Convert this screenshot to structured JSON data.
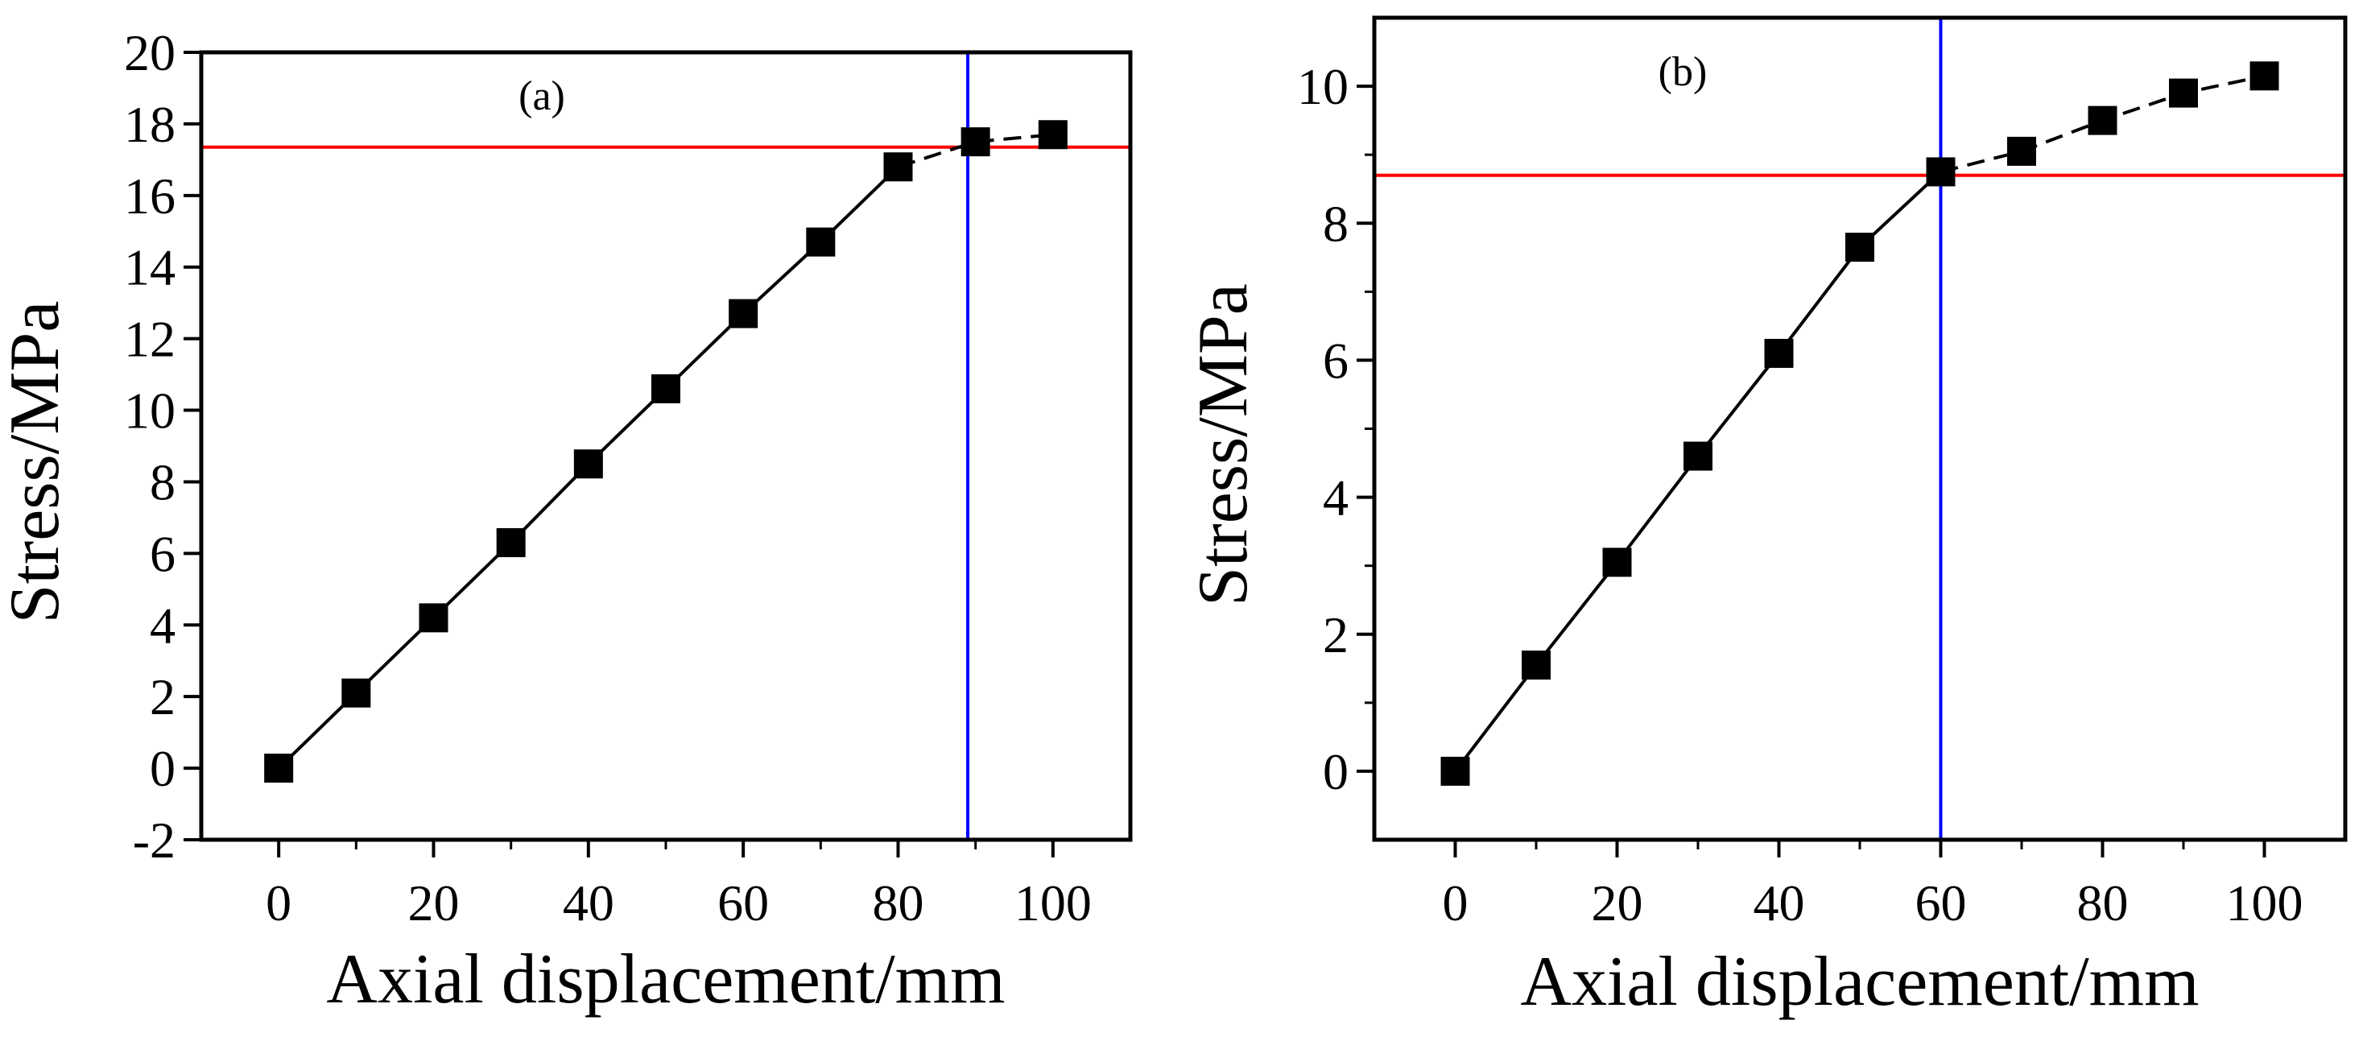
{
  "chart_data": [
    {
      "type": "line",
      "panel_label": "(a)",
      "xlabel": "Axial displacement/mm",
      "ylabel": "Stress/MPa",
      "xlim": [
        -10,
        110
      ],
      "ylim": [
        -2,
        20
      ],
      "xticks": [
        0,
        20,
        40,
        60,
        80,
        100
      ],
      "xticks_minor": [
        10,
        30,
        50,
        70,
        90
      ],
      "yticks": [
        -2,
        0,
        2,
        4,
        6,
        8,
        10,
        12,
        14,
        16,
        18,
        20
      ],
      "grid": false,
      "series": [
        {
          "name": "Stress",
          "marker": "square",
          "color": "#000000",
          "solid_segment_end_index": 8,
          "x": [
            0,
            10,
            20,
            30,
            40,
            50,
            60,
            70,
            80,
            90,
            100
          ],
          "y": [
            0.0,
            2.1,
            4.2,
            6.3,
            8.5,
            10.6,
            12.7,
            14.7,
            16.8,
            17.5,
            17.7
          ]
        }
      ],
      "reference_lines": {
        "horizontal": {
          "y": 17.35,
          "color": "#ff0000"
        },
        "vertical": {
          "x": 89,
          "color": "#0000ff"
        }
      }
    },
    {
      "type": "line",
      "panel_label": "(b)",
      "xlabel": "Axial displacement/mm",
      "ylabel": "Stress/MPa",
      "xlim": [
        -10,
        110
      ],
      "ylim": [
        -1,
        11
      ],
      "xticks": [
        0,
        20,
        40,
        60,
        80,
        100
      ],
      "xticks_minor": [
        10,
        30,
        50,
        70,
        90
      ],
      "yticks": [
        0,
        2,
        4,
        6,
        8,
        10
      ],
      "yticks_minor": [
        1,
        3,
        5,
        7,
        9
      ],
      "grid": false,
      "series": [
        {
          "name": "Stress",
          "marker": "square",
          "color": "#000000",
          "solid_segment_end_index": 6,
          "x": [
            0,
            10,
            20,
            30,
            40,
            50,
            60,
            70,
            80,
            90,
            100
          ],
          "y": [
            0.0,
            1.55,
            3.05,
            4.6,
            6.1,
            7.65,
            8.75,
            9.05,
            9.5,
            9.9,
            10.15
          ]
        }
      ],
      "reference_lines": {
        "horizontal": {
          "y": 8.7,
          "color": "#ff0000"
        },
        "vertical": {
          "x": 60,
          "color": "#0000ff"
        }
      }
    }
  ]
}
